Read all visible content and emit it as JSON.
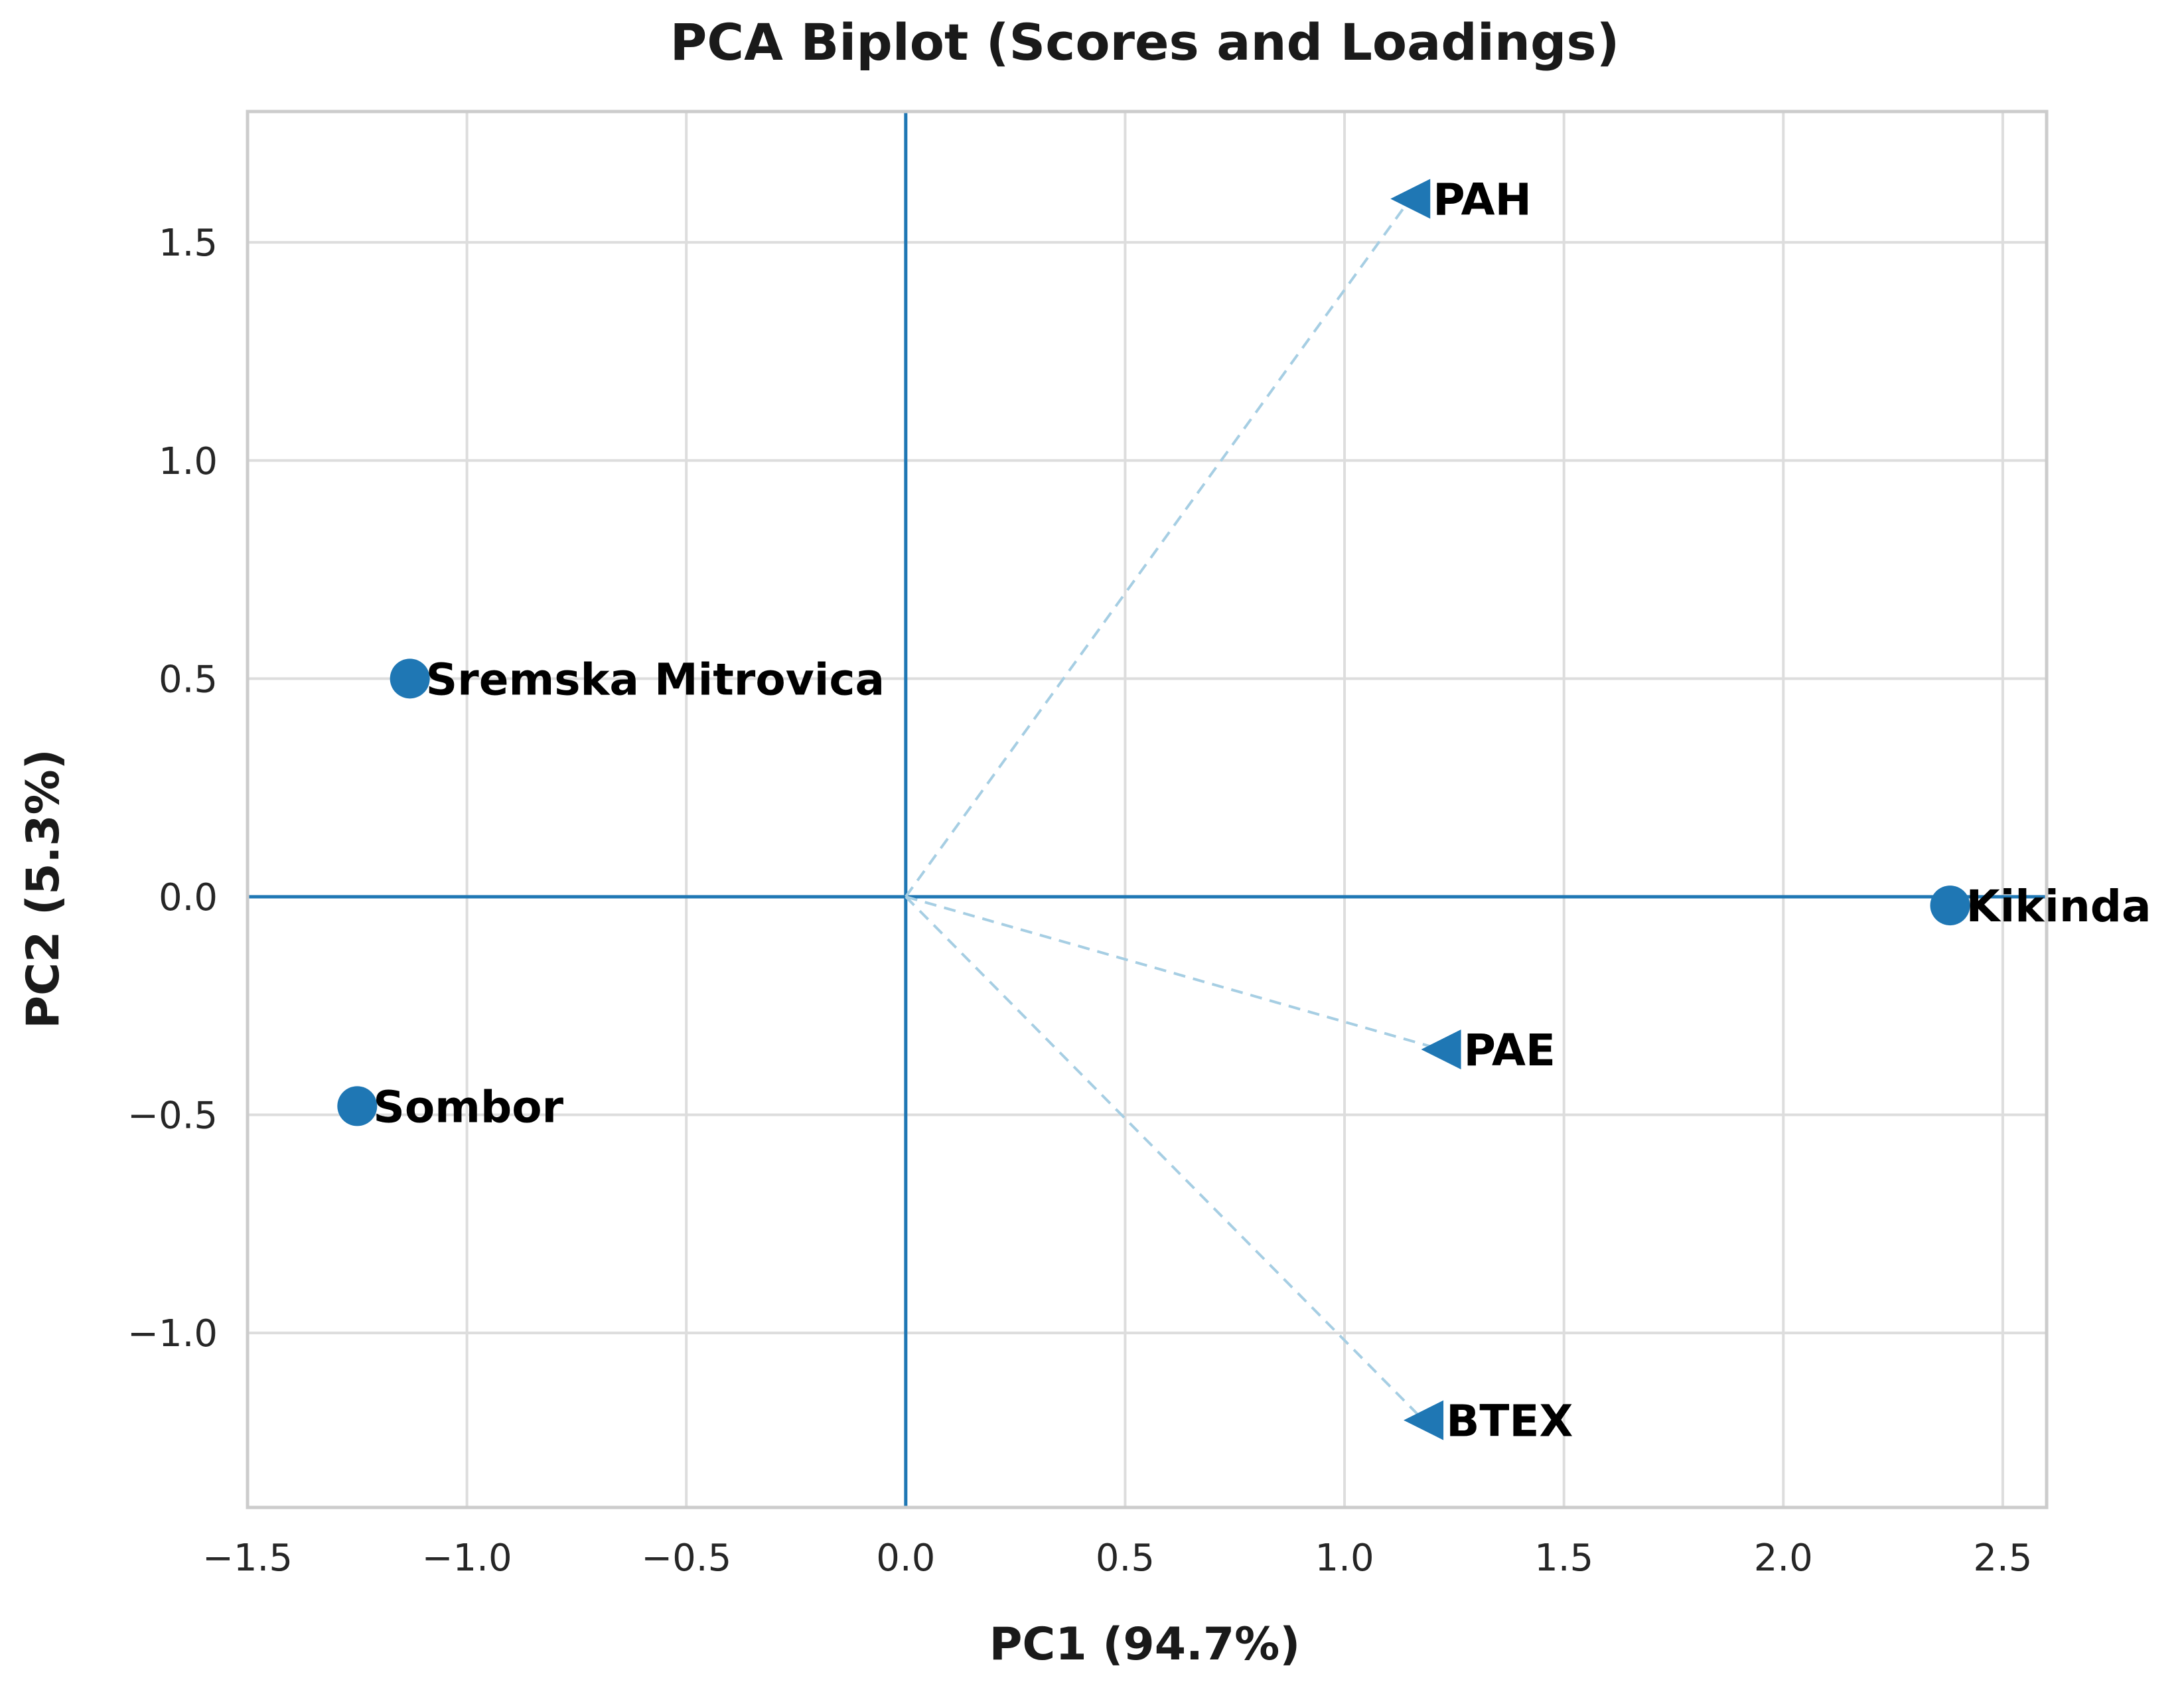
{
  "chart_data": {
    "type": "scatter",
    "title": "PCA Biplot (Scores and Loadings)",
    "xlabel": "PC1 (94.7%)",
    "ylabel": "PC2 (5.3%)",
    "xlim": [
      -1.5,
      2.6
    ],
    "ylim": [
      -1.4,
      1.8
    ],
    "xticks": [
      -1.5,
      -1.0,
      -0.5,
      0.0,
      0.5,
      1.0,
      1.5,
      2.0,
      2.5
    ],
    "xtick_labels": [
      "−1.5",
      "−1.0",
      "−0.5",
      "0.0",
      "0.5",
      "1.0",
      "1.5",
      "2.0",
      "2.5"
    ],
    "yticks": [
      -1.0,
      -0.5,
      0.0,
      0.5,
      1.0,
      1.5
    ],
    "ytick_labels": [
      "−1.0",
      "−0.5",
      "0.0",
      "0.5",
      "1.0",
      "1.5"
    ],
    "grid": true,
    "color": "#1f77b4",
    "loading_line_color": "#a6cee3",
    "scores": [
      {
        "label": "Sremska Mitrovica",
        "x": -1.13,
        "y": 0.5
      },
      {
        "label": "Sombor",
        "x": -1.25,
        "y": -0.48
      },
      {
        "label": "Kikinda",
        "x": 2.38,
        "y": -0.02
      }
    ],
    "loadings": [
      {
        "label": "PAH",
        "x": 1.15,
        "y": 1.6
      },
      {
        "label": "PAE",
        "x": 1.22,
        "y": -0.35
      },
      {
        "label": "BTEX",
        "x": 1.18,
        "y": -1.2
      }
    ]
  }
}
